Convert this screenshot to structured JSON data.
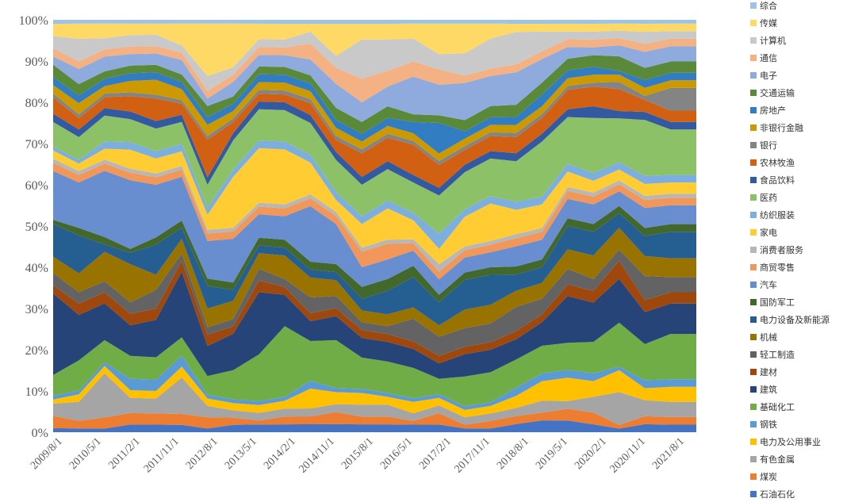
{
  "chart_data": {
    "type": "area",
    "stacked": "percent",
    "title": "",
    "xlabel": "",
    "ylabel": "",
    "ylim": [
      0,
      100
    ],
    "y_tick_labels": [
      "0%",
      "10%",
      "20%",
      "30%",
      "40%",
      "50%",
      "60%",
      "70%",
      "80%",
      "90%",
      "100%"
    ],
    "x_tick_labels": [
      "2009/8/1",
      "2010/5/1",
      "2011/2/1",
      "2011/11/1",
      "2012/8/1",
      "2013/5/1",
      "2014/2/1",
      "2014/11/1",
      "2015/8/1",
      "2016/5/1",
      "2017/2/1",
      "2017/11/1",
      "2018/8/1",
      "2019/5/1",
      "2020/2/1",
      "2020/11/1",
      "2021/8/1"
    ],
    "x": [
      "2009/8",
      "2010/2",
      "2010/8",
      "2011/2",
      "2011/8",
      "2012/2",
      "2012/8",
      "2013/2",
      "2013/8",
      "2014/2",
      "2014/8",
      "2015/2",
      "2015/8",
      "2016/2",
      "2016/8",
      "2017/2",
      "2017/8",
      "2018/2",
      "2018/8",
      "2019/2",
      "2019/8",
      "2020/2",
      "2020/8",
      "2021/2",
      "2021/8",
      "2022/2"
    ],
    "legend_position": "right",
    "grid": false,
    "series": [
      {
        "name": "石油石化",
        "color": "#4472C4",
        "values": [
          1,
          1,
          1,
          2,
          2,
          2,
          1,
          2,
          2,
          2,
          2,
          2,
          2,
          2,
          2,
          2,
          1,
          1,
          2,
          3,
          3,
          2,
          1,
          2,
          2,
          2
        ]
      },
      {
        "name": "煤炭",
        "color": "#ED7D31",
        "values": [
          3,
          2,
          3,
          3,
          3,
          3,
          3,
          2,
          1,
          2,
          2,
          3,
          2,
          2,
          1,
          3,
          1,
          2,
          2,
          2,
          3,
          3,
          1,
          2,
          2,
          2
        ]
      },
      {
        "name": "有色金属",
        "color": "#A5A5A5",
        "values": [
          3,
          5,
          12,
          4,
          4,
          10,
          3,
          2,
          2,
          2,
          2,
          2,
          3,
          3,
          2,
          2,
          2,
          2,
          2,
          3,
          2,
          4,
          9,
          4,
          4,
          4
        ]
      },
      {
        "name": "电力及公用事业",
        "color": "#FFC000",
        "values": [
          1,
          2,
          2,
          2,
          2,
          3,
          2,
          2,
          2,
          2,
          5,
          3,
          3,
          2,
          3,
          2,
          2,
          2,
          3,
          5,
          6,
          4,
          6,
          3,
          4,
          4
        ]
      },
      {
        "name": "钢铁",
        "color": "#5B9BD5",
        "values": [
          1,
          1,
          1,
          3,
          3,
          3,
          1,
          1,
          1,
          1,
          2,
          1,
          1,
          1,
          1,
          1,
          1,
          1,
          2,
          2,
          2,
          2,
          1,
          2,
          2,
          2
        ]
      },
      {
        "name": "基础化工",
        "color": "#70AD47",
        "values": [
          5,
          8,
          6,
          6,
          6,
          5,
          5,
          8,
          12,
          18,
          10,
          12,
          8,
          8,
          8,
          4,
          8,
          8,
          7,
          7,
          7,
          8,
          12,
          9,
          12,
          12
        ]
      },
      {
        "name": "建筑",
        "color": "#264478",
        "values": [
          20,
          12,
          10,
          8,
          10,
          18,
          8,
          10,
          16,
          8,
          5,
          6,
          5,
          5,
          5,
          4,
          6,
          6,
          5,
          6,
          12,
          10,
          12,
          8,
          8,
          8
        ]
      },
      {
        "name": "建材",
        "color": "#9E480E",
        "values": [
          2,
          3,
          3,
          3,
          3,
          3,
          3,
          2,
          3,
          2,
          2,
          2,
          2,
          2,
          2,
          2,
          2,
          2,
          2,
          2,
          3,
          3,
          5,
          3,
          3,
          3
        ]
      },
      {
        "name": "轻工制造",
        "color": "#636363",
        "values": [
          3,
          3,
          3,
          3,
          5,
          2,
          2,
          2,
          3,
          2,
          4,
          3,
          2,
          2,
          6,
          5,
          5,
          5,
          6,
          4,
          4,
          3,
          3,
          6,
          4,
          4
        ]
      },
      {
        "name": "机械",
        "color": "#997300",
        "values": [
          4,
          5,
          8,
          10,
          4,
          4,
          5,
          5,
          4,
          6,
          5,
          4,
          3,
          3,
          3,
          3,
          5,
          5,
          4,
          4,
          5,
          6,
          6,
          5,
          5,
          5
        ]
      },
      {
        "name": "电力设备及新能源",
        "color": "#255E91",
        "values": [
          8,
          10,
          2,
          3,
          8,
          3,
          6,
          3,
          2,
          2,
          2,
          2,
          3,
          6,
          8,
          6,
          8,
          8,
          4,
          4,
          6,
          6,
          4,
          5,
          7,
          7
        ]
      },
      {
        "name": "国防军工",
        "color": "#43682B",
        "values": [
          1,
          2,
          2,
          1,
          2,
          2,
          2,
          2,
          2,
          2,
          2,
          2,
          3,
          3,
          3,
          2,
          2,
          2,
          2,
          2,
          2,
          2,
          2,
          2,
          2,
          2
        ]
      },
      {
        "name": "汽车",
        "color": "#698ED0",
        "values": [
          12,
          12,
          18,
          18,
          14,
          12,
          10,
          12,
          6,
          6,
          14,
          10,
          5,
          5,
          4,
          4,
          4,
          4,
          5,
          5,
          5,
          5,
          4,
          5,
          5,
          5
        ]
      },
      {
        "name": "商贸零售",
        "color": "#F1975A",
        "values": [
          2,
          2,
          2,
          2,
          2,
          2,
          2,
          2,
          2,
          2,
          2,
          2,
          4,
          4,
          2,
          2,
          2,
          2,
          2,
          2,
          2,
          2,
          2,
          2,
          2,
          2
        ]
      },
      {
        "name": "消费者服务",
        "color": "#B7B7B7",
        "values": [
          1,
          1,
          1,
          1,
          1,
          1,
          1,
          1,
          1,
          1,
          1,
          1,
          1,
          1,
          1,
          2,
          1,
          1,
          1,
          1,
          1,
          1,
          1,
          1,
          1,
          1
        ]
      },
      {
        "name": "家电",
        "color": "#FFCD33",
        "values": [
          2,
          2,
          3,
          5,
          4,
          4,
          4,
          14,
          14,
          14,
          8,
          3,
          6,
          8,
          5,
          4,
          8,
          10,
          6,
          6,
          4,
          3,
          3,
          3,
          3,
          3
        ]
      },
      {
        "name": "纺织服装",
        "color": "#7CAFDD",
        "values": [
          1,
          1,
          2,
          2,
          2,
          2,
          2,
          2,
          2,
          2,
          2,
          2,
          2,
          2,
          2,
          4,
          2,
          2,
          2,
          2,
          2,
          2,
          2,
          2,
          2,
          2
        ]
      },
      {
        "name": "医药",
        "color": "#8CC168",
        "values": [
          6,
          6,
          7,
          6,
          6,
          6,
          6,
          8,
          8,
          8,
          8,
          8,
          8,
          8,
          8,
          10,
          10,
          10,
          10,
          14,
          12,
          14,
          12,
          14,
          12,
          12
        ]
      },
      {
        "name": "食品饮料",
        "color": "#335AA1",
        "values": [
          2,
          2,
          2,
          2,
          2,
          2,
          2,
          2,
          2,
          2,
          2,
          2,
          2,
          2,
          2,
          2,
          2,
          2,
          2,
          2,
          2,
          3,
          2,
          2,
          2,
          2
        ]
      },
      {
        "name": "农林牧渔",
        "color": "#D26012",
        "values": [
          4,
          3,
          3,
          4,
          6,
          3,
          10,
          3,
          2,
          2,
          3,
          3,
          6,
          6,
          8,
          6,
          4,
          4,
          4,
          4,
          5,
          5,
          6,
          3,
          3,
          3
        ]
      },
      {
        "name": "银行",
        "color": "#848484",
        "values": [
          1,
          1,
          1,
          1,
          1,
          1,
          1,
          1,
          1,
          1,
          1,
          1,
          1,
          1,
          1,
          1,
          1,
          1,
          1,
          1,
          1,
          1,
          2,
          1,
          6,
          6
        ]
      },
      {
        "name": "非银行金融",
        "color": "#CC9A00",
        "values": [
          2,
          3,
          2,
          3,
          4,
          3,
          3,
          2,
          2,
          2,
          2,
          2,
          2,
          2,
          2,
          2,
          2,
          2,
          2,
          2,
          2,
          2,
          2,
          2,
          2,
          2
        ]
      },
      {
        "name": "房地产",
        "color": "#327DC2",
        "values": [
          2,
          2,
          2,
          2,
          2,
          2,
          2,
          2,
          2,
          2,
          2,
          2,
          2,
          2,
          3,
          8,
          2,
          2,
          2,
          3,
          2,
          2,
          1,
          2,
          2,
          2
        ]
      },
      {
        "name": "交通运输",
        "color": "#5A8A39",
        "values": [
          3,
          3,
          2,
          2,
          2,
          2,
          3,
          2,
          2,
          2,
          2,
          3,
          3,
          3,
          2,
          2,
          3,
          3,
          3,
          3,
          3,
          3,
          4,
          3,
          3,
          3
        ]
      },
      {
        "name": "电子",
        "color": "#8FAADC",
        "values": [
          2,
          4,
          4,
          3,
          3,
          4,
          2,
          4,
          3,
          3,
          4,
          6,
          5,
          5,
          10,
          8,
          10,
          8,
          8,
          6,
          3,
          2,
          3,
          4,
          4,
          4
        ]
      },
      {
        "name": "通信",
        "color": "#F4B183",
        "values": [
          2,
          2,
          2,
          2,
          2,
          2,
          2,
          2,
          2,
          2,
          4,
          4,
          6,
          4,
          4,
          4,
          2,
          2,
          2,
          2,
          2,
          2,
          2,
          2,
          2,
          2
        ]
      },
      {
        "name": "计算机",
        "color": "#C9C9C9",
        "values": [
          3,
          6,
          3,
          3,
          3,
          2,
          4,
          2,
          2,
          2,
          3,
          3,
          10,
          8,
          6,
          4,
          6,
          8,
          8,
          5,
          2,
          2,
          2,
          3,
          2,
          2
        ]
      },
      {
        "name": "传媒",
        "color": "#FFD966",
        "values": [
          3,
          4,
          4,
          3,
          3,
          6,
          14,
          12,
          4,
          4,
          2,
          8,
          4,
          4,
          4,
          8,
          8,
          4,
          2,
          2,
          2,
          2,
          2,
          2,
          2,
          2
        ]
      },
      {
        "name": "综合",
        "color": "#9DC3E6",
        "values": [
          1,
          1,
          1,
          1,
          1,
          1,
          1,
          1,
          1,
          1,
          1,
          1,
          1,
          1,
          1,
          1,
          1,
          1,
          1,
          1,
          1,
          1,
          1,
          1,
          1,
          1
        ]
      }
    ]
  }
}
